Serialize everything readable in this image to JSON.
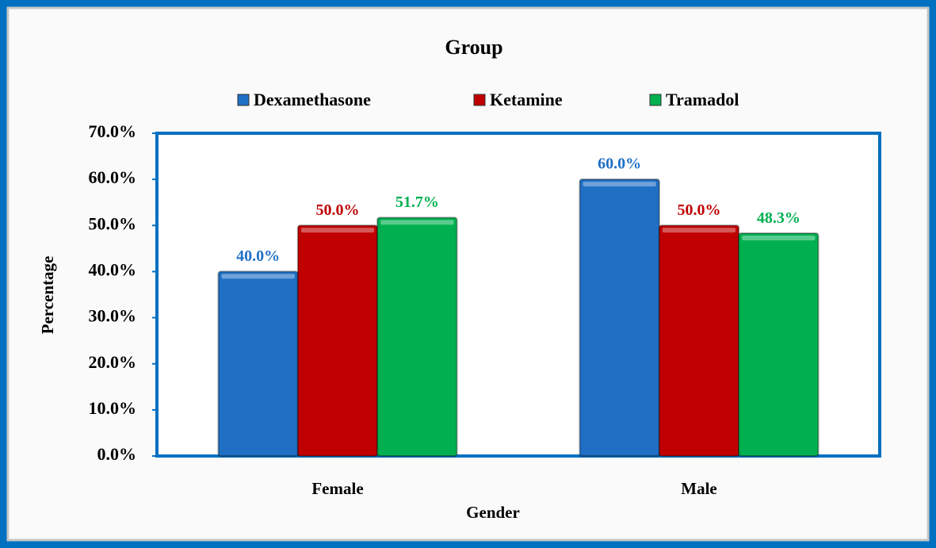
{
  "chart_data": {
    "type": "bar",
    "title": "Group",
    "x_label": "Gender",
    "y_label": "Percentage",
    "categories": [
      "Female",
      "Male"
    ],
    "series": [
      {
        "name": "Dexamethasone",
        "color": "#1f6fc5",
        "values": [
          40.0,
          60.0
        ],
        "value_labels": [
          "40.0%",
          "60.0%"
        ]
      },
      {
        "name": "Ketamine",
        "color": "#c00000",
        "values": [
          50.0,
          50.0
        ],
        "value_labels": [
          "50.0%",
          "50.0%"
        ]
      },
      {
        "name": "Tramadol",
        "color": "#00b050",
        "values": [
          51.7,
          48.3
        ],
        "value_labels": [
          "51.7%",
          "48.3%"
        ]
      }
    ],
    "ylim": [
      0,
      70
    ],
    "yticks": [
      {
        "value": 0,
        "label": "0.0%"
      },
      {
        "value": 10,
        "label": "10.0%"
      },
      {
        "value": 20,
        "label": "20.0%"
      },
      {
        "value": 30,
        "label": "30.0%"
      },
      {
        "value": 40,
        "label": "40.0%"
      },
      {
        "value": 50,
        "label": "50.0%"
      },
      {
        "value": 60,
        "label": "60.0%"
      },
      {
        "value": 70,
        "label": "70.0%"
      }
    ],
    "legend": "top"
  }
}
